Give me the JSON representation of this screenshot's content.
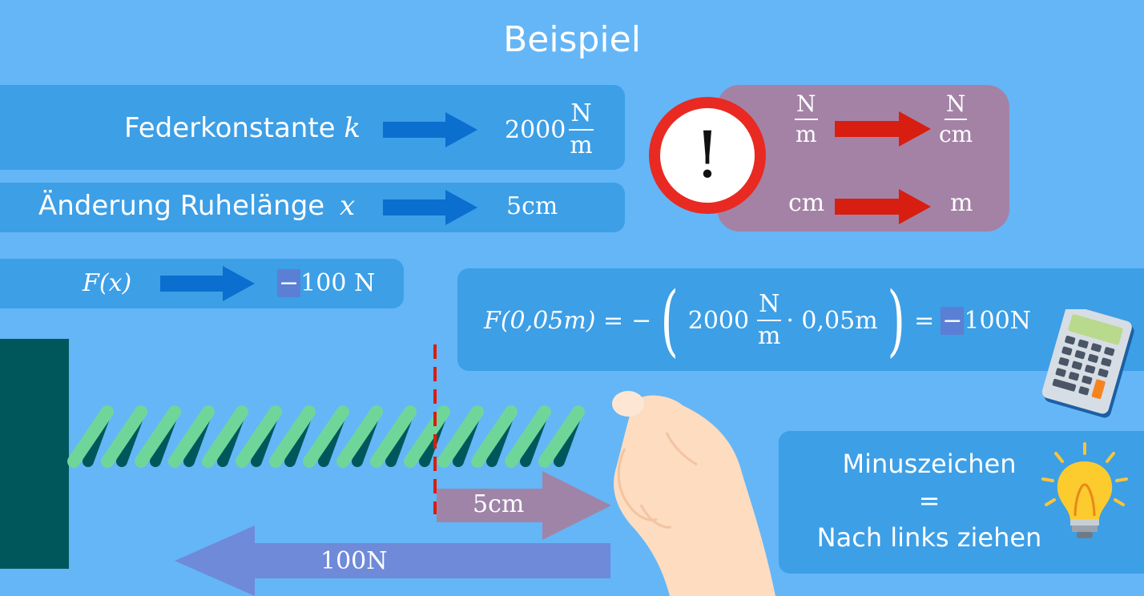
{
  "title": "Beispiel",
  "given": {
    "k_label": "Federkonstante",
    "k_var": "k",
    "k_value": "2000",
    "k_unit_num": "N",
    "k_unit_den": "m",
    "x_label": "Änderung Ruhelänge",
    "x_var": "x",
    "x_value": "5cm"
  },
  "force": {
    "label": "F(x)",
    "minus": "−",
    "value": "100 N"
  },
  "warning": {
    "symbol": "!",
    "from_num": "N",
    "from_den": "m",
    "to_num": "N",
    "to_den": "cm",
    "from_unit": "cm",
    "to_unit": "m"
  },
  "equation": {
    "lhs": "F(0,05m) =",
    "minus": "−",
    "open_paren": "(",
    "coeff": "2000",
    "unit_num": "N",
    "unit_den": "m",
    "rest": "· 0,05m",
    "close_paren": ")",
    "equals": "=",
    "result_minus": "−",
    "result": "100N"
  },
  "diagram": {
    "displacement_label": "5cm",
    "force_label": "100N"
  },
  "tip": {
    "line1": "Minuszeichen",
    "line2": "=",
    "line3": "Nach links ziehen"
  },
  "colors": {
    "background": "#64b6f7",
    "panel": "#3d9fe6",
    "arrow_blue": "#0a6fcf",
    "arrow_red": "#d81e10",
    "warning_panel": "#a482a6",
    "wall": "#00575b",
    "spring_light": "#6fd69a",
    "spring_dark": "#00575b",
    "displacement_arrow": "#9f84a8",
    "force_arrow": "#6f8ad9"
  }
}
